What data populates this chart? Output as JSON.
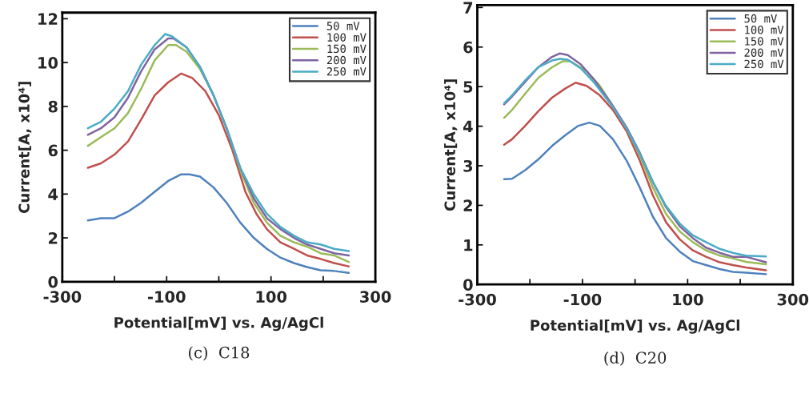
{
  "chart_data": [
    {
      "type": "line",
      "xlabel": "Potential[mV] vs. Ag/AgCl",
      "ylabel": "Current[A, x10⁴]",
      "annotations": [
        "(c)  C18"
      ],
      "xlim": [
        -300,
        300
      ],
      "xticks": [
        -300,
        {
          "value": -200,
          "label": null
        },
        -100,
        {
          "value": 0,
          "label": null
        },
        100,
        {
          "value": 200,
          "label": null
        },
        300
      ],
      "ylim": [
        0,
        12.28
      ],
      "yticks": [
        0,
        2,
        4,
        6,
        8,
        10,
        12
      ],
      "grid": false,
      "legend": "top right",
      "series": [
        {
          "name": "50 mV",
          "color": "#4f81bd",
          "x": [
            -251,
            -226,
            -200,
            -174,
            -149,
            -123,
            -97,
            -72,
            -56,
            -36,
            -10,
            15,
            41,
            67,
            92,
            118,
            144,
            169,
            195,
            221,
            249
          ],
          "values": [
            2.8,
            2.9,
            2.9,
            3.2,
            3.6,
            4.1,
            4.6,
            4.9,
            4.9,
            4.8,
            4.3,
            3.6,
            2.7,
            2.0,
            1.5,
            1.1,
            0.85,
            0.67,
            0.52,
            0.49,
            0.4
          ]
        },
        {
          "name": "100 mV",
          "color": "#c0504d",
          "x": [
            -251,
            -226,
            -200,
            -174,
            -149,
            -123,
            -97,
            -72,
            -51,
            -26,
            0,
            26,
            51,
            72,
            92,
            118,
            144,
            169,
            195,
            221,
            249
          ],
          "values": [
            5.2,
            5.4,
            5.8,
            6.4,
            7.4,
            8.5,
            9.1,
            9.5,
            9.3,
            8.7,
            7.6,
            6.0,
            4.1,
            3.1,
            2.4,
            1.8,
            1.5,
            1.2,
            1.04,
            0.85,
            0.7
          ]
        },
        {
          "name": "150 mV",
          "color": "#9bbb59",
          "x": [
            -251,
            -226,
            -200,
            -174,
            -149,
            -123,
            -97,
            -82,
            -62,
            -36,
            -10,
            15,
            41,
            67,
            92,
            118,
            144,
            169,
            195,
            221,
            249
          ],
          "values": [
            6.2,
            6.6,
            7.0,
            7.7,
            8.8,
            10.1,
            10.8,
            10.8,
            10.5,
            9.7,
            8.5,
            7.0,
            5.1,
            3.6,
            2.7,
            2.1,
            1.8,
            1.6,
            1.3,
            1.2,
            0.9
          ]
        },
        {
          "name": "200 mV",
          "color": "#8064a2",
          "x": [
            -251,
            -226,
            -200,
            -174,
            -149,
            -123,
            -97,
            -87,
            -62,
            -36,
            -10,
            15,
            41,
            67,
            92,
            118,
            144,
            169,
            195,
            221,
            249
          ],
          "values": [
            6.7,
            7.0,
            7.5,
            8.4,
            9.6,
            10.6,
            11.1,
            11.1,
            10.7,
            9.8,
            8.5,
            7.0,
            5.2,
            3.8,
            2.9,
            2.4,
            2.0,
            1.7,
            1.5,
            1.3,
            1.2
          ]
        },
        {
          "name": "250 mV",
          "color": "#4bacc6",
          "x": [
            -251,
            -226,
            -200,
            -174,
            -149,
            -123,
            -103,
            -90,
            -62,
            -36,
            -10,
            15,
            41,
            67,
            92,
            118,
            144,
            169,
            195,
            221,
            249
          ],
          "values": [
            7.0,
            7.3,
            7.9,
            8.7,
            9.9,
            10.8,
            11.3,
            11.2,
            10.7,
            9.8,
            8.5,
            7.0,
            5.2,
            4.0,
            3.1,
            2.5,
            2.1,
            1.8,
            1.7,
            1.5,
            1.4
          ]
        }
      ]
    },
    {
      "type": "line",
      "xlabel": "Potential[mV] vs. Ag/AgCl",
      "ylabel": "Current[A, x10⁴]",
      "annotations": [
        "(d)  C20"
      ],
      "xlim": [
        -300,
        300
      ],
      "xticks": [
        -300,
        {
          "value": -200,
          "label": null
        },
        -100,
        {
          "value": 0,
          "label": null
        },
        100,
        {
          "value": 200,
          "label": null
        },
        300
      ],
      "ylim": [
        0,
        7.06
      ],
      "yticks": [
        0,
        1,
        2,
        3,
        4,
        5,
        6,
        7
      ],
      "grid": false,
      "legend": "top right",
      "series": [
        {
          "name": "50 mV",
          "color": "#4f81bd",
          "x": [
            -249,
            -234,
            -209,
            -184,
            -158,
            -133,
            -108,
            -87,
            -67,
            -42,
            -16,
            9,
            34,
            59,
            85,
            110,
            135,
            161,
            186,
            211,
            249
          ],
          "values": [
            2.66,
            2.67,
            2.89,
            3.16,
            3.5,
            3.77,
            4.01,
            4.09,
            4.01,
            3.67,
            3.13,
            2.45,
            1.71,
            1.17,
            0.83,
            0.59,
            0.49,
            0.39,
            0.32,
            0.3,
            0.26
          ]
        },
        {
          "name": "100 mV",
          "color": "#c0504d",
          "x": [
            -249,
            -234,
            -209,
            -184,
            -158,
            -133,
            -113,
            -92,
            -67,
            -42,
            -16,
            9,
            34,
            59,
            85,
            110,
            135,
            161,
            186,
            211,
            249
          ],
          "values": [
            3.53,
            3.67,
            4.01,
            4.38,
            4.72,
            4.95,
            5.1,
            5.02,
            4.78,
            4.41,
            3.87,
            3.13,
            2.25,
            1.57,
            1.14,
            0.86,
            0.7,
            0.56,
            0.49,
            0.43,
            0.36
          ]
        },
        {
          "name": "150 mV",
          "color": "#9bbb59",
          "x": [
            -249,
            -234,
            -209,
            -184,
            -158,
            -138,
            -123,
            -92,
            -67,
            -42,
            -16,
            9,
            34,
            59,
            85,
            110,
            135,
            161,
            186,
            211,
            249
          ],
          "values": [
            4.21,
            4.41,
            4.82,
            5.22,
            5.49,
            5.64,
            5.64,
            5.39,
            5.02,
            4.51,
            3.94,
            3.26,
            2.45,
            1.78,
            1.34,
            1.07,
            0.86,
            0.73,
            0.66,
            0.57,
            0.51
          ]
        },
        {
          "name": "200 mV",
          "color": "#8064a2",
          "x": [
            -249,
            -234,
            -209,
            -184,
            -158,
            -143,
            -128,
            -103,
            -77,
            -42,
            -16,
            9,
            34,
            59,
            85,
            110,
            135,
            161,
            186,
            211,
            249
          ],
          "values": [
            4.55,
            4.75,
            5.12,
            5.49,
            5.75,
            5.84,
            5.8,
            5.56,
            5.16,
            4.51,
            3.97,
            3.33,
            2.59,
            1.95,
            1.47,
            1.17,
            0.93,
            0.8,
            0.7,
            0.7,
            0.56
          ]
        },
        {
          "name": "250 mV",
          "color": "#4bacc6",
          "x": [
            -249,
            -234,
            -209,
            -184,
            -158,
            -143,
            -128,
            -103,
            -77,
            -42,
            -16,
            9,
            34,
            59,
            85,
            110,
            135,
            161,
            186,
            211,
            249
          ],
          "values": [
            4.58,
            4.78,
            5.16,
            5.49,
            5.66,
            5.7,
            5.68,
            5.46,
            5.09,
            4.48,
            3.94,
            3.3,
            2.59,
            1.98,
            1.54,
            1.24,
            1.07,
            0.9,
            0.8,
            0.73,
            0.71
          ]
        }
      ]
    }
  ]
}
